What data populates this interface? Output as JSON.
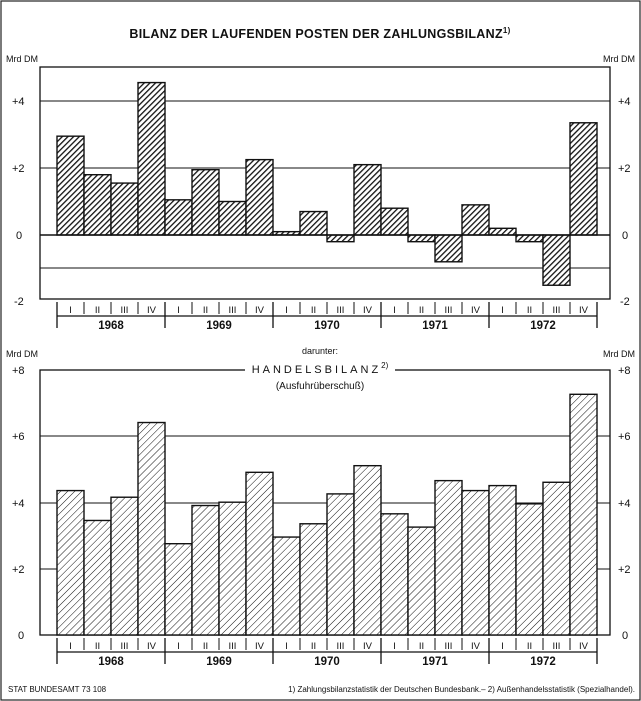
{
  "chart_data": [
    {
      "type": "bar",
      "title": "BILANZ DER LAUFENDEN POSTEN DER ZAHLUNGSBILANZ",
      "title_note": "1)",
      "unit_left": "Mrd DM",
      "unit_right": "Mrd DM",
      "yticks": [
        "+4",
        "+2",
        "0",
        "-2"
      ],
      "ylim": [
        -2,
        5
      ],
      "quarters": [
        "I",
        "II",
        "III",
        "IV",
        "I",
        "II",
        "III",
        "IV",
        "I",
        "II",
        "III",
        "IV",
        "I",
        "II",
        "III",
        "IV",
        "I",
        "II",
        "III",
        "IV"
      ],
      "years": [
        "1968",
        "1969",
        "1970",
        "1971",
        "1972"
      ],
      "values": [
        2.95,
        1.8,
        1.55,
        4.55,
        1.05,
        1.95,
        1.0,
        2.25,
        0.1,
        0.7,
        -0.2,
        2.1,
        0.8,
        -0.2,
        -0.8,
        0.9,
        0.2,
        -0.2,
        -1.5,
        3.35
      ],
      "fill": "dense-hatch"
    },
    {
      "type": "bar",
      "prefix": "darunter:",
      "title": "HANDELSBILANZ",
      "title_note": "2)",
      "subtitle": "(Ausfuhrüberschuß)",
      "unit_left": "Mrd DM",
      "unit_right": "Mrd DM",
      "yticks": [
        "+8",
        "+6",
        "+4",
        "+2",
        "0"
      ],
      "ylim": [
        0,
        8
      ],
      "quarters": [
        "I",
        "II",
        "III",
        "IV",
        "I",
        "II",
        "III",
        "IV",
        "I",
        "II",
        "III",
        "IV",
        "I",
        "II",
        "III",
        "IV",
        "I",
        "II",
        "III",
        "IV"
      ],
      "years": [
        "1968",
        "1969",
        "1970",
        "1971",
        "1972"
      ],
      "values": [
        4.35,
        3.45,
        4.15,
        6.4,
        2.75,
        3.9,
        4.0,
        4.9,
        2.95,
        3.35,
        4.25,
        5.1,
        3.65,
        3.25,
        4.65,
        4.35,
        4.5,
        3.95,
        4.6,
        7.25
      ],
      "fill": "light-hatch"
    }
  ],
  "footer": {
    "source": "STAT BUNDESAMT 73 108",
    "notes": "1) Zahlungsbilanzstatistik der Deutschen Bundesbank.– 2) Außenhandelsstatistik (Spezialhandel)."
  }
}
